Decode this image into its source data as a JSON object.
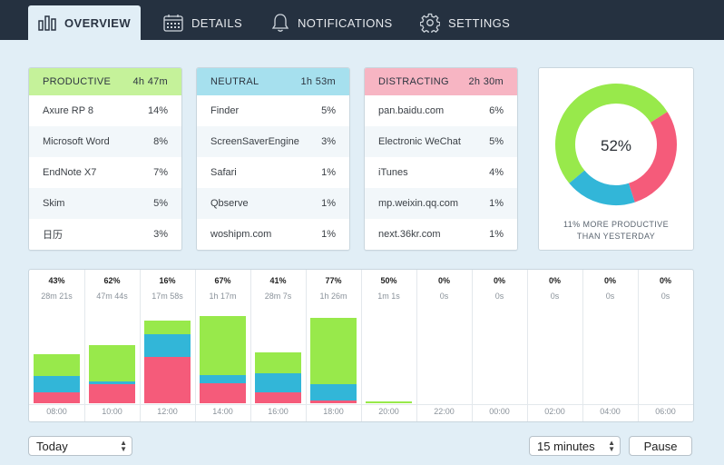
{
  "nav": {
    "tabs": [
      {
        "label": "OVERVIEW",
        "icon": "bar-chart-icon",
        "active": true
      },
      {
        "label": "DETAILS",
        "icon": "calendar-icon",
        "active": false
      },
      {
        "label": "NOTIFICATIONS",
        "icon": "bell-icon",
        "active": false
      },
      {
        "label": "SETTINGS",
        "icon": "gear-icon",
        "active": false
      }
    ]
  },
  "colors": {
    "productive": "#98e94b",
    "neutral": "#32b6d8",
    "distracting": "#f55b7a",
    "productive_header": "#c5f29a",
    "neutral_header": "#a6e0ee",
    "distracting_header": "#f7b5c3"
  },
  "categories": [
    {
      "name": "PRODUCTIVE",
      "total": "4h 47m",
      "apps": [
        {
          "name": "Axure RP 8",
          "pct": "14%"
        },
        {
          "name": "Microsoft Word",
          "pct": "8%"
        },
        {
          "name": "EndNote X7",
          "pct": "7%"
        },
        {
          "name": "Skim",
          "pct": "5%"
        },
        {
          "name": "日历",
          "pct": "3%"
        }
      ]
    },
    {
      "name": "NEUTRAL",
      "total": "1h 53m",
      "apps": [
        {
          "name": "Finder",
          "pct": "5%"
        },
        {
          "name": "ScreenSaverEngine",
          "pct": "3%"
        },
        {
          "name": "Safari",
          "pct": "1%"
        },
        {
          "name": "Qbserve",
          "pct": "1%"
        },
        {
          "name": "woshipm.com",
          "pct": "1%"
        }
      ]
    },
    {
      "name": "DISTRACTING",
      "total": "2h 30m",
      "apps": [
        {
          "name": "pan.baidu.com",
          "pct": "6%"
        },
        {
          "name": "Electronic WeChat",
          "pct": "5%"
        },
        {
          "name": "iTunes",
          "pct": "4%"
        },
        {
          "name": "mp.weixin.qq.com",
          "pct": "1%"
        },
        {
          "name": "next.36kr.com",
          "pct": "1%"
        }
      ]
    }
  ],
  "summary": {
    "productivity_pct": "52%",
    "caption_line1": "11% MORE PRODUCTIVE",
    "caption_line2": "THAN YESTERDAY",
    "donut": {
      "productive": 0.52,
      "distracting": 0.29,
      "neutral": 0.19
    }
  },
  "chart_data": {
    "type": "bar",
    "stacked": true,
    "categories": [
      "08:00",
      "10:00",
      "12:00",
      "14:00",
      "16:00",
      "18:00",
      "20:00",
      "22:00",
      "00:00",
      "02:00",
      "04:00",
      "06:00"
    ],
    "productivity": [
      "43%",
      "62%",
      "16%",
      "67%",
      "41%",
      "77%",
      "50%",
      "0%",
      "0%",
      "0%",
      "0%",
      "0%"
    ],
    "durations": [
      "28m 21s",
      "47m 44s",
      "17m 58s",
      "1h 17m",
      "28m 7s",
      "1h 26m",
      "1m 1s",
      "0s",
      "0s",
      "0s",
      "0s",
      "0s"
    ],
    "series": [
      {
        "name": "Distracting",
        "color": "#f55b7a",
        "values": [
          12,
          21,
          51,
          22,
          12,
          3,
          0,
          0,
          0,
          0,
          0,
          0
        ]
      },
      {
        "name": "Neutral",
        "color": "#32b6d8",
        "values": [
          18,
          3,
          25,
          9,
          21,
          18,
          0,
          0,
          0,
          0,
          0,
          0
        ]
      },
      {
        "name": "Productive",
        "color": "#98e94b",
        "values": [
          24,
          40,
          15,
          65,
          23,
          73,
          2,
          0,
          0,
          0,
          0,
          0
        ]
      }
    ],
    "ylim": [
      0,
      120
    ]
  },
  "controls": {
    "date_select": "Today",
    "interval_select": "15 minutes",
    "pause_label": "Pause"
  }
}
